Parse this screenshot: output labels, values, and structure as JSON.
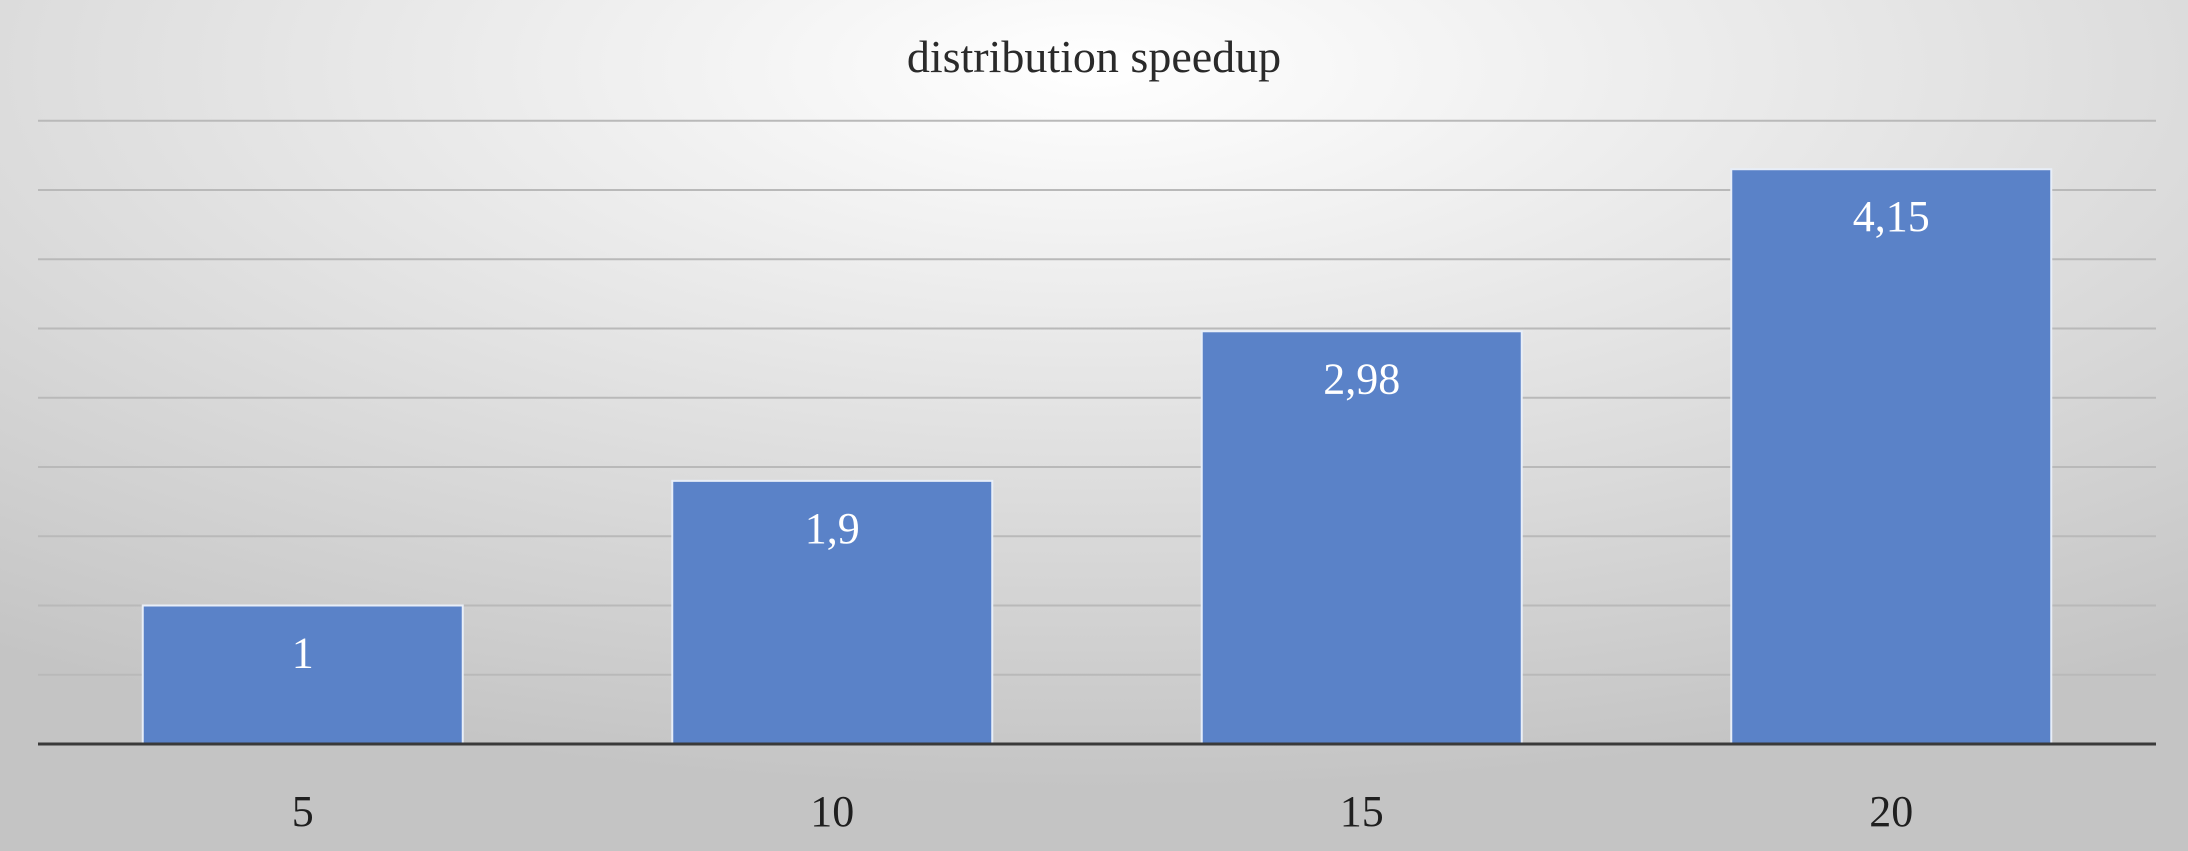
{
  "chart_data": {
    "type": "bar",
    "title": "distribution speedup",
    "xlabel": "",
    "ylabel": "",
    "categories": [
      "5",
      "10",
      "15",
      "20"
    ],
    "values": [
      1,
      1.9,
      2.98,
      4.15
    ],
    "value_labels": [
      "1",
      "1,9",
      "2,98",
      "4,15"
    ],
    "ylim": [
      0,
      4.5
    ],
    "grid": true,
    "legend": "none",
    "colors": {
      "bar": "#5a82c8",
      "background_center": "#ffffff",
      "background_edge": "#c4c4c4",
      "grid": "#b9b9b9",
      "axis": "#3a3a3a"
    }
  }
}
